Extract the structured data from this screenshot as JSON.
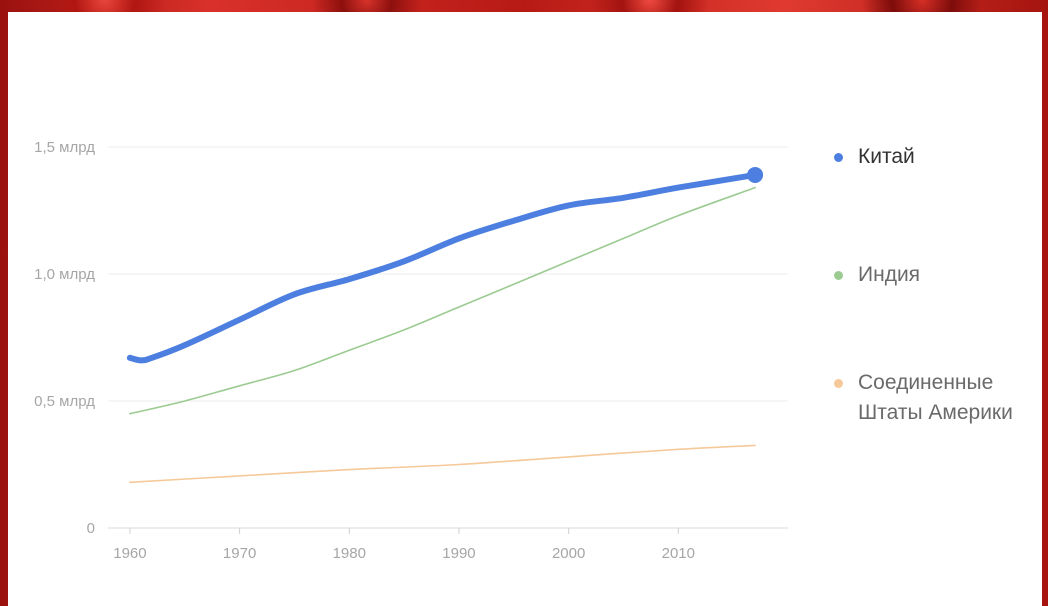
{
  "chart_data": {
    "type": "line",
    "title": "",
    "xlabel": "",
    "ylabel": "",
    "xlim": [
      1958,
      2020
    ],
    "ylim": [
      0,
      1.5
    ],
    "x_ticks": [
      1960,
      1970,
      1980,
      1990,
      2000,
      2010
    ],
    "x_tick_labels": [
      "1960",
      "1970",
      "1980",
      "1990",
      "2000",
      "2010"
    ],
    "y_ticks": [
      0,
      0.5,
      1.0,
      1.5
    ],
    "y_tick_labels": [
      "0",
      "0,5 млрд",
      "1,0 млрд",
      "1,5 млрд"
    ],
    "grid": true,
    "legend_position": "right",
    "series": [
      {
        "name": "Китай",
        "color": "#4d7fe0",
        "highlighted": true,
        "x": [
          1960,
          1961,
          1962,
          1965,
          1970,
          1975,
          1980,
          1985,
          1990,
          1995,
          2000,
          2005,
          2010,
          2017
        ],
        "values": [
          0.67,
          0.66,
          0.67,
          0.72,
          0.82,
          0.92,
          0.98,
          1.05,
          1.14,
          1.21,
          1.27,
          1.3,
          1.34,
          1.39
        ]
      },
      {
        "name": "Индия",
        "color": "#9ccb92",
        "highlighted": false,
        "x": [
          1960,
          1965,
          1970,
          1975,
          1980,
          1985,
          1990,
          1995,
          2000,
          2005,
          2010,
          2017
        ],
        "values": [
          0.45,
          0.5,
          0.56,
          0.62,
          0.7,
          0.78,
          0.87,
          0.96,
          1.05,
          1.14,
          1.23,
          1.34
        ]
      },
      {
        "name": "Соединенные Штаты Америки",
        "color": "#f5c99a",
        "highlighted": false,
        "x": [
          1960,
          1970,
          1980,
          1990,
          2000,
          2010,
          2017
        ],
        "values": [
          0.18,
          0.205,
          0.23,
          0.25,
          0.28,
          0.31,
          0.325
        ]
      }
    ]
  },
  "legend": {
    "items": [
      {
        "label": "Китай",
        "color": "#4d7fe0"
      },
      {
        "label": "Индия",
        "color": "#9ccb92"
      },
      {
        "label_line1": "Соединенные",
        "label_line2": "Штаты Америки",
        "color": "#f5c99a"
      }
    ]
  }
}
